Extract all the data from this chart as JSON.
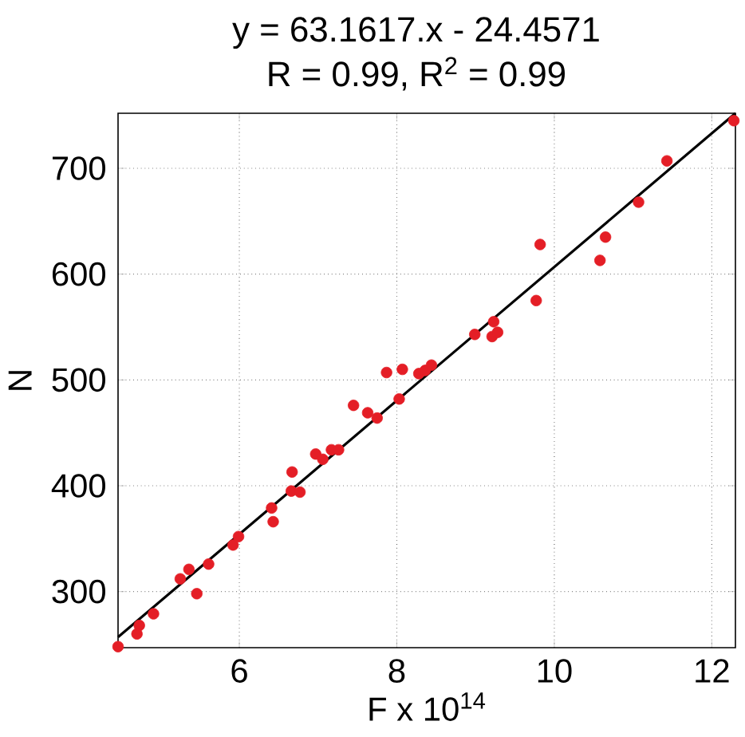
{
  "chart_data": {
    "type": "scatter",
    "title": "y = 63.1617.x - 24.4571",
    "subtitle": "R = 0.99, R$^{2}$ = 0.99",
    "xlabel": "F x 10$^{14}$",
    "ylabel": "N",
    "xlim": [
      4.46,
      12.3
    ],
    "ylim": [
      247,
      752
    ],
    "xticks": [
      6,
      8,
      10,
      12
    ],
    "yticks": [
      300,
      400,
      500,
      600,
      700
    ],
    "grid": true,
    "series": [
      {
        "color": "#e41e26",
        "marker": "circle",
        "x": [
          4.46,
          4.7,
          4.73,
          4.91,
          5.25,
          5.36,
          5.46,
          5.61,
          5.92,
          5.99,
          6.41,
          6.43,
          6.67,
          6.66,
          6.77,
          6.97,
          7.06,
          7.17,
          7.26,
          7.45,
          7.63,
          7.75,
          7.87,
          8.07,
          8.03,
          8.28,
          8.36,
          8.44,
          8.99,
          9.23,
          9.21,
          9.28,
          9.77,
          9.82,
          10.58,
          10.65,
          11.07,
          11.43,
          12.28
        ],
        "values": [
          248,
          260,
          268,
          279,
          312,
          321,
          298,
          326,
          344,
          352,
          379,
          366,
          413,
          395,
          394,
          430,
          425,
          434,
          434,
          476,
          469,
          464,
          507,
          510,
          482,
          506,
          509,
          514,
          543,
          555,
          541,
          545,
          575,
          628,
          613,
          635,
          668,
          707,
          745
        ]
      },
      {
        "type": "line",
        "color": "#000000",
        "line_style": "solid",
        "marker": "none",
        "x": [
          4.46,
          12.3
        ],
        "values": [
          257,
          752
        ]
      }
    ]
  }
}
